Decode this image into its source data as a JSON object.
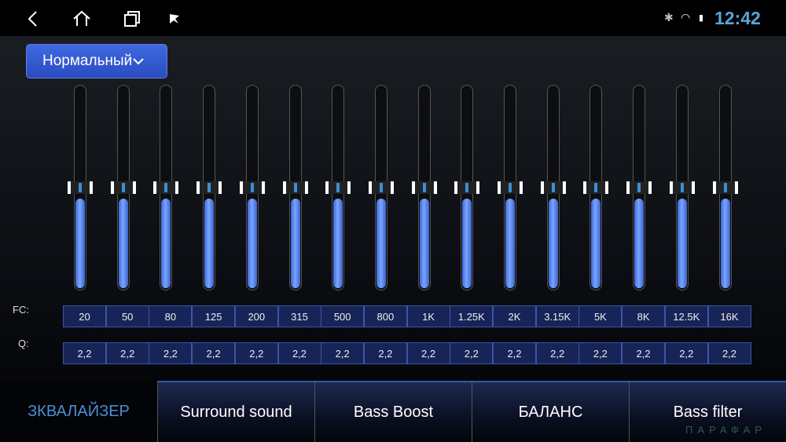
{
  "status_bar": {
    "time": "12:42",
    "icons": [
      "bluetooth-icon",
      "wifi-icon",
      "sim-icon"
    ]
  },
  "nav_bar": {
    "icons": [
      "back-icon",
      "home-icon",
      "recent-apps-icon",
      "media-icon"
    ]
  },
  "preset": {
    "label": "Нормальный",
    "icon": "chevron-down-icon"
  },
  "equalizer": {
    "fc_label": "FC:",
    "q_label": "Q:",
    "bands": [
      {
        "fc": "20",
        "q": "2,2",
        "level": 0.5
      },
      {
        "fc": "50",
        "q": "2,2",
        "level": 0.5
      },
      {
        "fc": "80",
        "q": "2,2",
        "level": 0.5
      },
      {
        "fc": "125",
        "q": "2,2",
        "level": 0.5
      },
      {
        "fc": "200",
        "q": "2,2",
        "level": 0.5
      },
      {
        "fc": "315",
        "q": "2,2",
        "level": 0.5
      },
      {
        "fc": "500",
        "q": "2,2",
        "level": 0.5
      },
      {
        "fc": "800",
        "q": "2,2",
        "level": 0.5
      },
      {
        "fc": "1K",
        "q": "2,2",
        "level": 0.5
      },
      {
        "fc": "1.25K",
        "q": "2,2",
        "level": 0.5
      },
      {
        "fc": "2K",
        "q": "2,2",
        "level": 0.5
      },
      {
        "fc": "3.15K",
        "q": "2,2",
        "level": 0.5
      },
      {
        "fc": "5K",
        "q": "2,2",
        "level": 0.5
      },
      {
        "fc": "8K",
        "q": "2,2",
        "level": 0.5
      },
      {
        "fc": "12.5K",
        "q": "2,2",
        "level": 0.5
      },
      {
        "fc": "16K",
        "q": "2,2",
        "level": 0.5
      }
    ]
  },
  "tabs": [
    {
      "label": "ЗКВАЛАЙЗЕР",
      "active": true
    },
    {
      "label": "Surround sound"
    },
    {
      "label": "Bass Boost"
    },
    {
      "label": "БАЛАНС"
    },
    {
      "label": "Bass filter"
    }
  ],
  "colors": {
    "accent": "#4a90d8",
    "clock": "#5ba4dc",
    "preset": "#3a5fd8"
  },
  "watermark": "ПАРАФАР"
}
